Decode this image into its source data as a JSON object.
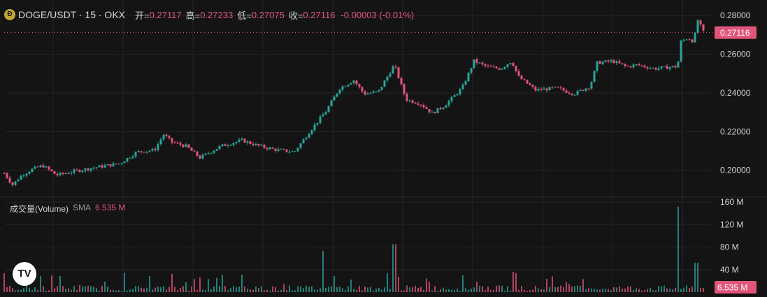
{
  "legend": {
    "coin_glyph": "Ð",
    "symbol": "DOGE/USDT · 15 · OKX",
    "open_label": "开=",
    "open": "0.27117",
    "high_label": "高=",
    "high": "0.27233",
    "low_label": "低=",
    "low": "0.27075",
    "close_label": "收=",
    "close": "0.27116",
    "change": "-0.00003 (-0.01%)"
  },
  "volume_legend": {
    "title": "成交量(Volume)",
    "sma_label": "SMA",
    "value": "6.535 M"
  },
  "watermark": {
    "text": "TV"
  },
  "colors": {
    "up": "#26a69a",
    "down": "#e2557a",
    "background": "#141414",
    "grid": "#242424",
    "axis_text": "#d1d4dc"
  },
  "chart_data": [
    {
      "type": "candlestick",
      "title": "DOGE/USDT · 15 · OKX",
      "y_axis_ticks": [
        "0.28000",
        "0.26000",
        "0.24000",
        "0.22000",
        "0.20000"
      ],
      "ylim": [
        0.1905,
        0.2815
      ],
      "last_price": "0.27116",
      "series_outline": [
        [
          0,
          0.1985
        ],
        [
          12,
          0.1925
        ],
        [
          25,
          0.1975
        ],
        [
          40,
          0.2005
        ],
        [
          55,
          0.2025
        ],
        [
          75,
          0.1975
        ],
        [
          100,
          0.1995
        ],
        [
          130,
          0.2015
        ],
        [
          165,
          0.2035
        ],
        [
          190,
          0.2095
        ],
        [
          215,
          0.2105
        ],
        [
          228,
          0.2185
        ],
        [
          240,
          0.2145
        ],
        [
          260,
          0.2125
        ],
        [
          280,
          0.2065
        ],
        [
          310,
          0.2125
        ],
        [
          340,
          0.2155
        ],
        [
          365,
          0.2125
        ],
        [
          390,
          0.2105
        ],
        [
          415,
          0.2095
        ],
        [
          440,
          0.2215
        ],
        [
          460,
          0.2305
        ],
        [
          480,
          0.2425
        ],
        [
          500,
          0.2465
        ],
        [
          515,
          0.2395
        ],
        [
          535,
          0.2405
        ],
        [
          558,
          0.2545
        ],
        [
          575,
          0.2365
        ],
        [
          595,
          0.2345
        ],
        [
          612,
          0.2295
        ],
        [
          630,
          0.2335
        ],
        [
          655,
          0.2425
        ],
        [
          672,
          0.2565
        ],
        [
          690,
          0.2535
        ],
        [
          710,
          0.2525
        ],
        [
          726,
          0.2565
        ],
        [
          735,
          0.2485
        ],
        [
          760,
          0.2415
        ],
        [
          790,
          0.2425
        ],
        [
          815,
          0.2395
        ],
        [
          838,
          0.2435
        ],
        [
          848,
          0.2555
        ],
        [
          870,
          0.2565
        ],
        [
          890,
          0.2535
        ],
        [
          905,
          0.2545
        ],
        [
          930,
          0.2525
        ],
        [
          955,
          0.2535
        ],
        [
          963,
          0.2535
        ],
        [
          968,
          0.2665
        ],
        [
          978,
          0.2685
        ],
        [
          986,
          0.2665
        ],
        [
          992,
          0.2775
        ],
        [
          1000,
          0.2715
        ],
        [
          1003,
          0.27116
        ]
      ]
    },
    {
      "type": "bar",
      "title": "成交量(Volume)",
      "y_axis_ticks": [
        "160 M",
        "120 M",
        "80 M",
        "40 M"
      ],
      "ylim": [
        0,
        160
      ],
      "last_value": "6.535 M",
      "peaks": [
        [
          455,
          73
        ],
        [
          558,
          85
        ],
        [
          965,
          152
        ],
        [
          990,
          52
        ]
      ]
    }
  ]
}
